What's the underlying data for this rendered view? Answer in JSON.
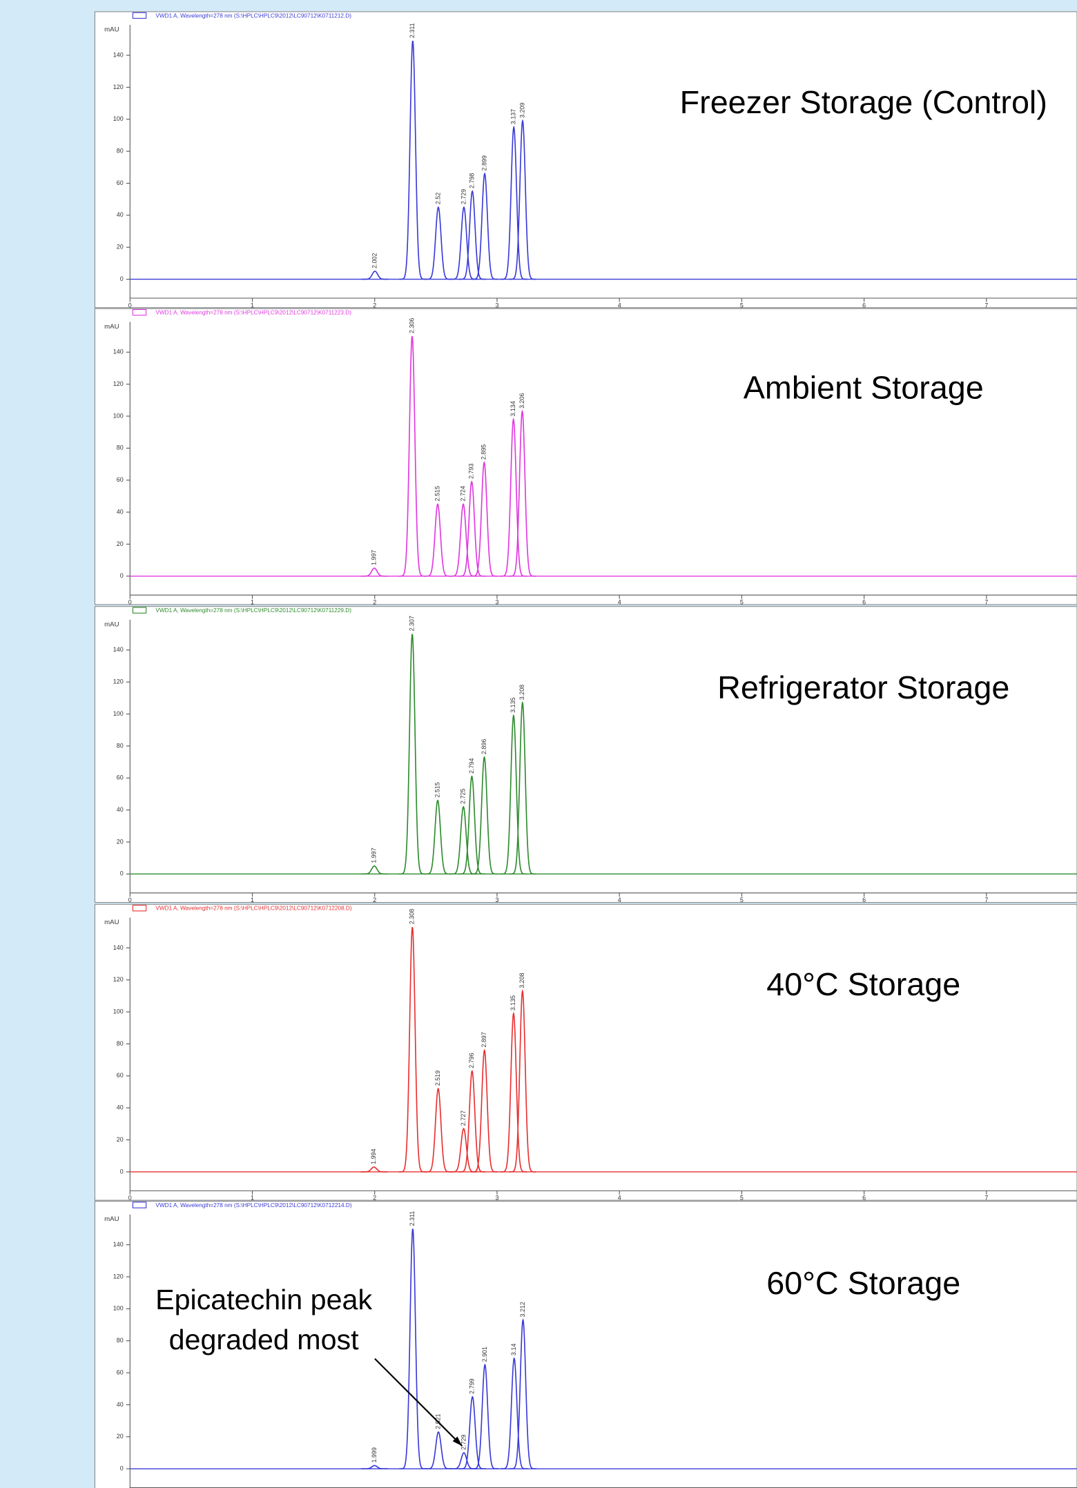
{
  "chart_data": [
    {
      "type": "line",
      "title": "Freezer Storage (Control)",
      "header": "VWD1 A, Wavelength=278 nm (S:\\HPLC\\HPLC9\\2012\\LC90712\\K0711212.D)",
      "y_label": "mAU",
      "x": [
        2.002,
        2.311,
        2.52,
        2.729,
        2.798,
        2.899,
        3.137,
        3.209
      ],
      "values": [
        5,
        149,
        45,
        45,
        55,
        66,
        95,
        99
      ],
      "color": "#3a3ad8",
      "xlim": [
        0,
        7.74
      ],
      "ylim": [
        -10,
        160
      ],
      "xticks": [
        0,
        1,
        2,
        3,
        4,
        5,
        6,
        7
      ],
      "yticks": [
        0,
        20,
        40,
        60,
        80,
        100,
        120,
        140
      ]
    },
    {
      "type": "line",
      "title": "Ambient Storage",
      "header": "VWD1 A, Wavelength=278 nm (S:\\HPLC\\HPLC9\\2012\\LC90712\\K0711223.D)",
      "y_label": "mAU",
      "x": [
        1.997,
        2.306,
        2.515,
        2.724,
        2.793,
        2.895,
        3.134,
        3.206
      ],
      "values": [
        5,
        150,
        45,
        45,
        59,
        71,
        98,
        103
      ],
      "color": "#e038e0",
      "xlim": [
        0,
        7.74
      ],
      "ylim": [
        -10,
        160
      ],
      "xticks": [
        0,
        1,
        2,
        3,
        4,
        5,
        6,
        7
      ],
      "yticks": [
        0,
        20,
        40,
        60,
        80,
        100,
        120,
        140
      ]
    },
    {
      "type": "line",
      "title": "Refrigerator Storage",
      "header": "VWD1 A, Wavelength=278 nm (S:\\HPLC\\HPLC9\\2012\\LC90712\\K0711229.D)",
      "y_label": "mAU",
      "x": [
        1.997,
        2.307,
        2.515,
        2.725,
        2.794,
        2.896,
        3.135,
        3.208
      ],
      "values": [
        5,
        150,
        46,
        42,
        61,
        73,
        99,
        107
      ],
      "color": "#2e8b2e",
      "xlim": [
        0,
        7.74
      ],
      "ylim": [
        -10,
        160
      ],
      "xticks": [
        0,
        1,
        2,
        3,
        4,
        5,
        6,
        7
      ],
      "yticks": [
        0,
        20,
        40,
        60,
        80,
        100,
        120,
        140
      ]
    },
    {
      "type": "line",
      "title": "40°C Storage",
      "header": "VWD1 A, Wavelength=278 nm (S:\\HPLC\\HPLC9\\2012\\LC90712\\K0712208.D)",
      "y_label": "mAU",
      "x": [
        1.994,
        2.308,
        2.519,
        2.727,
        2.796,
        2.897,
        3.135,
        3.208
      ],
      "values": [
        3,
        153,
        52,
        27,
        63,
        76,
        99,
        113
      ],
      "color": "#e83030",
      "xlim": [
        0,
        7.74
      ],
      "ylim": [
        -10,
        160
      ],
      "xticks": [
        0,
        1,
        2,
        3,
        4,
        5,
        6,
        7
      ],
      "yticks": [
        0,
        20,
        40,
        60,
        80,
        100,
        120,
        140
      ]
    },
    {
      "type": "line",
      "title": "60°C Storage",
      "header": "VWD1 A, Wavelength=278 nm (S:\\HPLC\\HPLC9\\2012\\LC90712\\K0712214.D)",
      "y_label": "mAU",
      "x": [
        1.999,
        2.311,
        2.521,
        2.729,
        2.799,
        2.901,
        3.14,
        3.212
      ],
      "values": [
        2,
        150,
        23,
        10,
        45,
        65,
        69,
        93
      ],
      "color": "#3a3ad8",
      "xlim": [
        0,
        7.74
      ],
      "ylim": [
        -10,
        160
      ],
      "xticks": [
        0,
        1,
        2,
        3,
        4,
        5,
        6,
        7
      ],
      "yticks": [
        0,
        20,
        40,
        60,
        80,
        100,
        120,
        140
      ],
      "annotation": [
        "Epicatechin peak",
        "degraded most"
      ]
    }
  ]
}
